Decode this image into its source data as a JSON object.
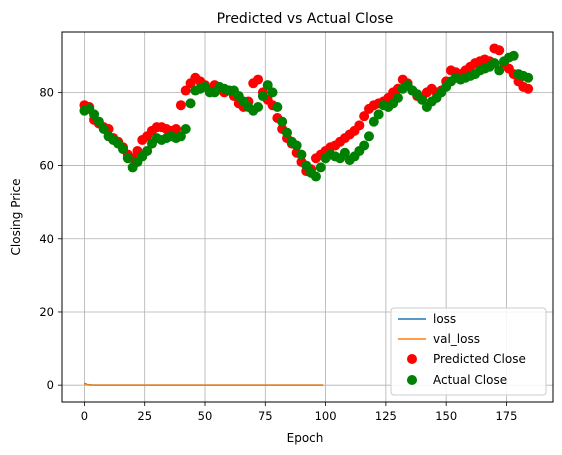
{
  "chart_data": {
    "type": "scatter",
    "title": "Predicted vs Actual Close",
    "xlabel": "Epoch",
    "ylabel": "Closing Price",
    "xlim": [
      -9.3,
      194.3
    ],
    "ylim": [
      -4.6,
      96.5
    ],
    "xticks": [
      0,
      25,
      50,
      75,
      100,
      125,
      150,
      175
    ],
    "yticks": [
      0,
      20,
      40,
      60,
      80
    ],
    "grid": true,
    "legend_position": "lower-right",
    "legend": [
      "loss",
      "val_loss",
      "Predicted Close",
      "Actual Close"
    ],
    "series": [
      {
        "name": "loss",
        "kind": "line",
        "color": "#1f77b4",
        "x": [
          0,
          1,
          2,
          3,
          5,
          10,
          20,
          40,
          60,
          80,
          99
        ],
        "y": [
          0.5,
          0.2,
          0.1,
          0.05,
          0.02,
          0.01,
          0.01,
          0.01,
          0.01,
          0.01,
          0.01
        ]
      },
      {
        "name": "val_loss",
        "kind": "line",
        "color": "#ff7f0e",
        "x": [
          0,
          1,
          2,
          5,
          10,
          20,
          40,
          60,
          80,
          99
        ],
        "y": [
          0.3,
          0.1,
          0.05,
          0.02,
          0.01,
          0.01,
          0.01,
          0.01,
          0.01,
          0.01
        ]
      },
      {
        "name": "Predicted Close",
        "kind": "scatter",
        "color": "#ff0000",
        "x": [
          0,
          2,
          4,
          6,
          8,
          10,
          12,
          14,
          16,
          18,
          20,
          22,
          24,
          26,
          28,
          30,
          32,
          34,
          36,
          38,
          40,
          42,
          44,
          46,
          48,
          50,
          52,
          54,
          56,
          58,
          60,
          62,
          64,
          66,
          68,
          70,
          72,
          74,
          76,
          78,
          80,
          82,
          84,
          86,
          88,
          90,
          92,
          94,
          96,
          98,
          100,
          102,
          104,
          106,
          108,
          110,
          112,
          114,
          116,
          118,
          120,
          122,
          124,
          126,
          128,
          130,
          132,
          134,
          136,
          138,
          140,
          142,
          144,
          146,
          148,
          150,
          152,
          154,
          156,
          158,
          160,
          162,
          164,
          166,
          168,
          170,
          172,
          174,
          176,
          178,
          180,
          182,
          184
        ],
        "y": [
          76.5,
          76.0,
          72.5,
          71.5,
          70.5,
          70.0,
          67.5,
          66.5,
          65.0,
          63.0,
          62.0,
          64.0,
          67.0,
          68.0,
          69.5,
          70.5,
          70.5,
          70.0,
          69.5,
          70.0,
          76.5,
          80.5,
          82.5,
          84.0,
          83.0,
          82.0,
          80.5,
          82.0,
          81.0,
          80.0,
          80.5,
          79.0,
          77.0,
          76.0,
          77.5,
          82.5,
          83.5,
          80.0,
          78.0,
          76.5,
          73.0,
          70.0,
          67.5,
          66.0,
          63.5,
          61.0,
          58.5,
          59.0,
          62.0,
          63.0,
          64.0,
          65.0,
          65.5,
          66.5,
          67.5,
          68.5,
          69.5,
          71.0,
          73.5,
          75.5,
          76.5,
          77.0,
          77.5,
          78.5,
          80.0,
          81.0,
          83.5,
          82.5,
          80.5,
          79.0,
          78.5,
          80.0,
          81.0,
          80.0,
          80.5,
          83.0,
          86.0,
          85.5,
          85.0,
          86.0,
          87.0,
          88.0,
          88.5,
          89.0,
          88.5,
          92.0,
          91.5,
          88.0,
          86.5,
          85.0,
          83.0,
          81.5,
          81.0
        ]
      },
      {
        "name": "Actual Close",
        "kind": "scatter",
        "color": "#008000",
        "x": [
          0,
          2,
          4,
          6,
          8,
          10,
          12,
          14,
          16,
          18,
          20,
          22,
          24,
          26,
          28,
          30,
          32,
          34,
          36,
          38,
          40,
          42,
          44,
          46,
          48,
          50,
          52,
          54,
          56,
          58,
          60,
          62,
          64,
          66,
          68,
          70,
          72,
          74,
          76,
          78,
          80,
          82,
          84,
          86,
          88,
          90,
          92,
          94,
          96,
          98,
          100,
          102,
          104,
          106,
          108,
          110,
          112,
          114,
          116,
          118,
          120,
          122,
          124,
          126,
          128,
          130,
          132,
          134,
          136,
          138,
          140,
          142,
          144,
          146,
          148,
          150,
          152,
          154,
          156,
          158,
          160,
          162,
          164,
          166,
          168,
          170,
          172,
          174,
          176,
          178,
          180,
          182,
          184
        ],
        "y": [
          75.0,
          75.5,
          74.0,
          72.0,
          70.0,
          68.0,
          67.0,
          66.0,
          64.5,
          62.0,
          59.5,
          61.0,
          62.5,
          64.0,
          66.0,
          67.5,
          67.0,
          67.5,
          68.0,
          67.5,
          68.0,
          70.0,
          77.0,
          80.5,
          81.0,
          81.5,
          80.0,
          80.0,
          81.5,
          81.0,
          80.5,
          80.5,
          79.0,
          77.5,
          76.0,
          75.0,
          76.0,
          79.0,
          82.0,
          80.0,
          76.0,
          72.0,
          69.0,
          66.5,
          65.5,
          63.0,
          60.0,
          58.0,
          57.0,
          59.5,
          62.0,
          63.0,
          62.5,
          62.0,
          63.5,
          61.5,
          62.5,
          64.0,
          65.5,
          68.0,
          72.0,
          74.0,
          76.5,
          76.0,
          77.0,
          78.5,
          81.0,
          82.0,
          80.5,
          79.5,
          78.0,
          76.0,
          77.5,
          78.5,
          80.0,
          81.5,
          83.0,
          84.0,
          83.5,
          84.0,
          84.5,
          85.0,
          86.0,
          86.5,
          87.0,
          88.0,
          86.0,
          88.5,
          89.5,
          90.0,
          85.0,
          84.5,
          84.0
        ]
      }
    ]
  }
}
